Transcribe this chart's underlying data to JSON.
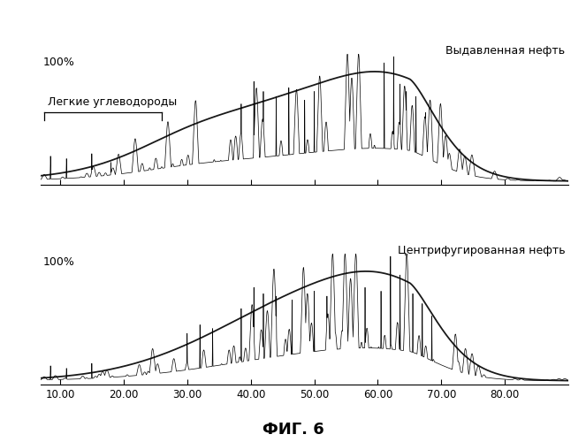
{
  "title": "ФИГ. 6",
  "top_label": "Выдавленная нефть",
  "bottom_label": "Центрифугированная нефть",
  "annotation": "Легкие углеводороды",
  "ylabel": "100%",
  "xmin": 7.0,
  "xmax": 90.0,
  "xticks": [
    10.0,
    20.0,
    30.0,
    40.0,
    50.0,
    60.0,
    70.0,
    80.0
  ],
  "background_color": "#ffffff",
  "line_color": "#000000"
}
